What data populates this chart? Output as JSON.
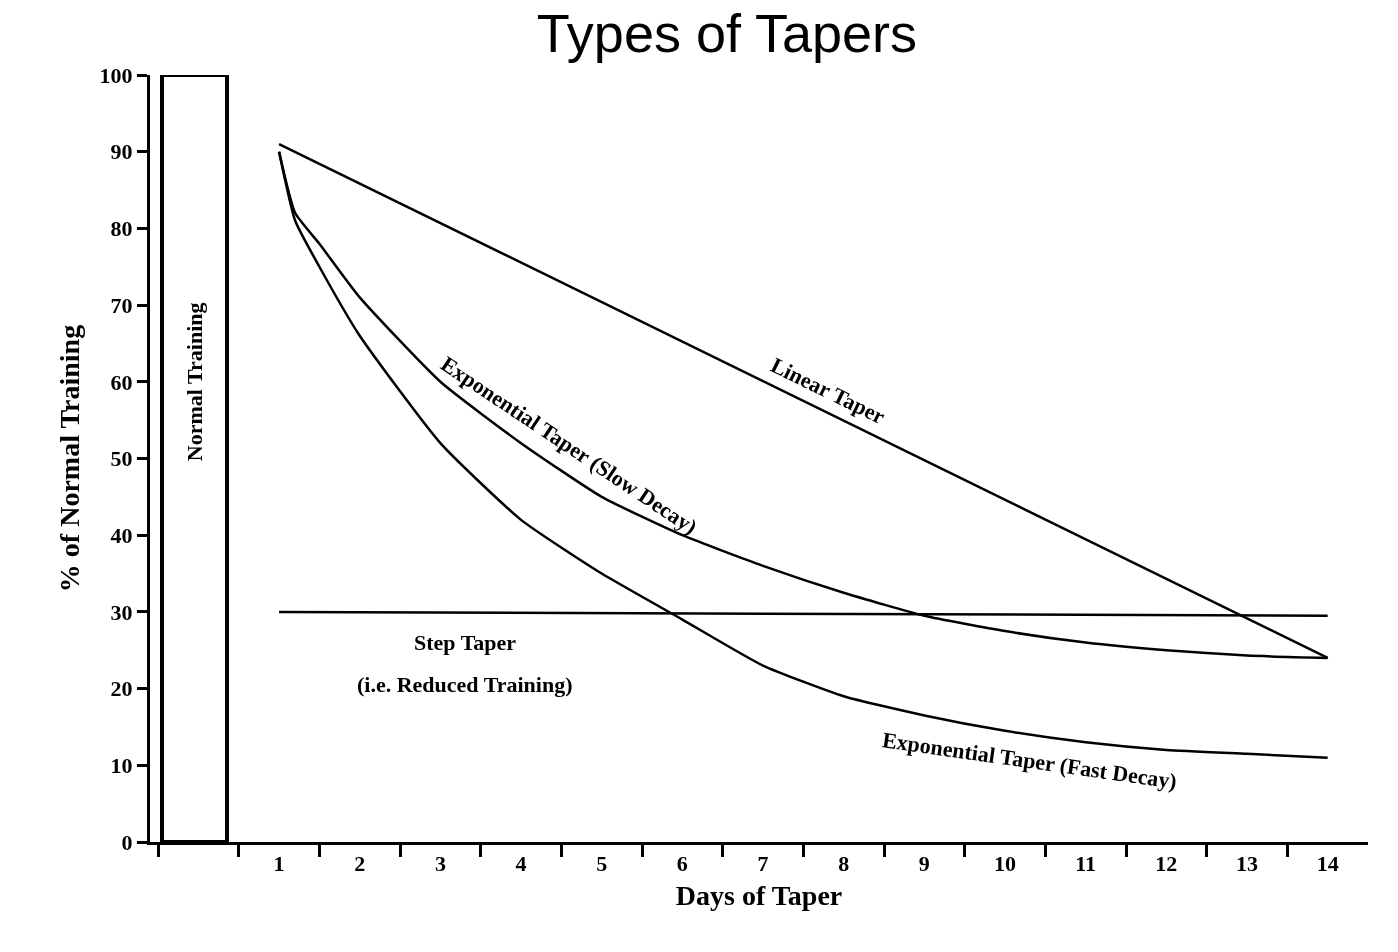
{
  "chart_data": {
    "type": "line",
    "title": "Types of Tapers",
    "xlabel": "Days of Taper",
    "ylabel": "% of Normal Training",
    "xlim": [
      -0.6,
      14.5
    ],
    "ylim": [
      0,
      100
    ],
    "xticks": [
      {
        "value": -0.5,
        "label": null
      },
      {
        "value": 0.5,
        "label": null
      },
      1,
      {
        "value": 1.5,
        "label": null
      },
      2,
      {
        "value": 2.5,
        "label": null
      },
      3,
      {
        "value": 3.5,
        "label": null
      },
      4,
      {
        "value": 4.5,
        "label": null
      },
      5,
      {
        "value": 5.5,
        "label": null
      },
      6,
      {
        "value": 6.5,
        "label": null
      },
      7,
      {
        "value": 7.5,
        "label": null
      },
      8,
      {
        "value": 8.5,
        "label": null
      },
      9,
      {
        "value": 9.5,
        "label": null
      },
      10,
      {
        "value": 10.5,
        "label": null
      },
      11,
      {
        "value": 11.5,
        "label": null
      },
      12,
      {
        "value": 12.5,
        "label": null
      },
      13,
      {
        "value": 13.5,
        "label": null
      },
      14
    ],
    "yticks": [
      0,
      10,
      20,
      30,
      40,
      50,
      60,
      70,
      80,
      90,
      100
    ],
    "grid": false,
    "legend": false,
    "marker": "none",
    "line_style": "solid",
    "series": [
      {
        "name": "Normal Training",
        "type": "bar",
        "color": "#ffffff",
        "x": [
          -0.05
        ],
        "values": [
          100
        ]
      },
      {
        "name": "Linear Taper",
        "color": "#000000",
        "x": [
          1,
          14
        ],
        "values": [
          91,
          24
        ]
      },
      {
        "name": "Exponential Taper (Slow Decay)",
        "color": "#000000",
        "x": [
          1,
          1.2,
          1.5,
          2,
          3,
          4,
          5,
          6,
          7,
          8,
          9,
          10,
          11,
          12,
          13,
          14
        ],
        "values": [
          90,
          82,
          78,
          71,
          60,
          52,
          45,
          40,
          36,
          32.5,
          29.5,
          27.5,
          26,
          25,
          24.3,
          24
        ]
      },
      {
        "name": "Exponential Taper (Fast Decay)",
        "color": "#000000",
        "x": [
          1,
          1.2,
          1.5,
          2,
          3,
          4,
          5,
          6,
          7,
          8,
          9,
          10,
          11,
          12,
          13,
          14
        ],
        "values": [
          90,
          81,
          75,
          66,
          52,
          42,
          35,
          29,
          23,
          19,
          16.5,
          14.5,
          13,
          12,
          11.5,
          11
        ]
      },
      {
        "name": "Step Taper",
        "color": "#000000",
        "x": [
          1,
          14
        ],
        "values": [
          30,
          29.5
        ]
      }
    ],
    "annotations": [
      "(i.e. Reduced Training)"
    ]
  }
}
